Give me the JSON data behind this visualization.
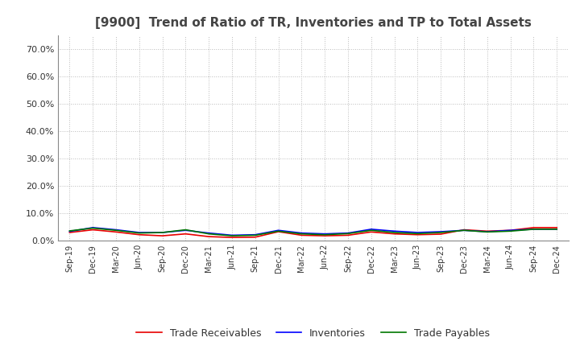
{
  "title": "[9900]  Trend of Ratio of TR, Inventories and TP to Total Assets",
  "x_labels": [
    "Sep-19",
    "Dec-19",
    "Mar-20",
    "Jun-20",
    "Sep-20",
    "Dec-20",
    "Mar-21",
    "Jun-21",
    "Sep-21",
    "Dec-21",
    "Mar-22",
    "Jun-22",
    "Sep-22",
    "Dec-22",
    "Mar-23",
    "Jun-23",
    "Sep-23",
    "Dec-23",
    "Mar-24",
    "Jun-24",
    "Sep-24",
    "Dec-24"
  ],
  "trade_receivables": [
    0.03,
    0.04,
    0.032,
    0.022,
    0.018,
    0.025,
    0.015,
    0.012,
    0.013,
    0.033,
    0.02,
    0.018,
    0.02,
    0.032,
    0.025,
    0.022,
    0.024,
    0.04,
    0.035,
    0.038,
    0.048,
    0.048
  ],
  "inventories": [
    0.034,
    0.048,
    0.04,
    0.03,
    0.03,
    0.038,
    0.028,
    0.02,
    0.022,
    0.038,
    0.028,
    0.025,
    0.028,
    0.042,
    0.035,
    0.03,
    0.033,
    0.038,
    0.033,
    0.038,
    0.042,
    0.042
  ],
  "trade_payables": [
    0.036,
    0.046,
    0.038,
    0.028,
    0.03,
    0.04,
    0.025,
    0.018,
    0.02,
    0.035,
    0.025,
    0.022,
    0.026,
    0.038,
    0.03,
    0.026,
    0.03,
    0.038,
    0.032,
    0.035,
    0.042,
    0.042
  ],
  "tr_color": "#e80000",
  "inv_color": "#0000ff",
  "tp_color": "#007700",
  "ylim": [
    0.0,
    0.75
  ],
  "yticks": [
    0.0,
    0.1,
    0.2,
    0.3,
    0.4,
    0.5,
    0.6,
    0.7
  ],
  "ytick_labels": [
    "0.0%",
    "10.0%",
    "20.0%",
    "30.0%",
    "40.0%",
    "50.0%",
    "60.0%",
    "70.0%"
  ],
  "background_color": "#ffffff",
  "plot_bg_color": "#ffffff",
  "grid_color": "#bbbbbb",
  "title_color": "#444444",
  "legend_labels": [
    "Trade Receivables",
    "Inventories",
    "Trade Payables"
  ]
}
